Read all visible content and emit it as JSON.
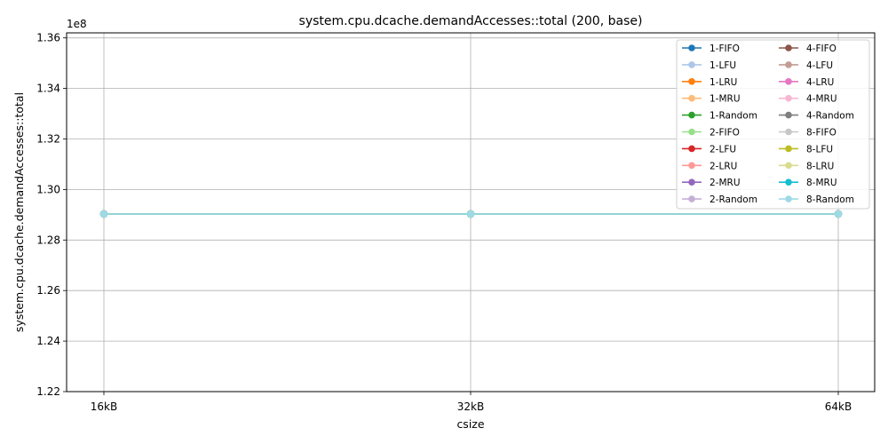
{
  "chart_data": {
    "type": "line",
    "title": "system.cpu.dcache.demandAccesses::total (200, base)",
    "xlabel": "csize",
    "ylabel": "system.cpu.dcache.demandAccesses::total",
    "categories": [
      "16kB",
      "32kB",
      "64kB"
    ],
    "ylim": [
      122000000.0,
      136200000.0
    ],
    "yticks": [
      122000000.0,
      124000000.0,
      126000000.0,
      128000000.0,
      130000000.0,
      132000000.0,
      134000000.0,
      136000000.0
    ],
    "ytick_labels": [
      "1.22",
      "1.24",
      "1.26",
      "1.28",
      "1.30",
      "1.32",
      "1.34",
      "1.36"
    ],
    "offset_label": "1e8",
    "grid": true,
    "legend_position": "top-right",
    "legend_columns": 2,
    "series": [
      {
        "name": "1-FIFO",
        "color": "#1f77b4",
        "values": [
          129030000,
          129030000,
          129030000
        ]
      },
      {
        "name": "1-LFU",
        "color": "#aec7e8",
        "values": [
          129030000,
          129030000,
          129030000
        ]
      },
      {
        "name": "1-LRU",
        "color": "#ff7f0e",
        "values": [
          129030000,
          129030000,
          129030000
        ]
      },
      {
        "name": "1-MRU",
        "color": "#ffbb78",
        "values": [
          129030000,
          129030000,
          129030000
        ]
      },
      {
        "name": "1-Random",
        "color": "#2ca02c",
        "values": [
          129030000,
          129030000,
          129030000
        ]
      },
      {
        "name": "2-FIFO",
        "color": "#98df8a",
        "values": [
          129030000,
          129030000,
          129030000
        ]
      },
      {
        "name": "2-LFU",
        "color": "#d62728",
        "values": [
          129030000,
          129030000,
          129030000
        ]
      },
      {
        "name": "2-LRU",
        "color": "#ff9896",
        "values": [
          129030000,
          129030000,
          129030000
        ]
      },
      {
        "name": "2-MRU",
        "color": "#9467bd",
        "values": [
          129030000,
          129030000,
          129030000
        ]
      },
      {
        "name": "2-Random",
        "color": "#c5b0d5",
        "values": [
          129030000,
          129030000,
          129030000
        ]
      },
      {
        "name": "4-FIFO",
        "color": "#8c564b",
        "values": [
          129030000,
          129030000,
          129030000
        ]
      },
      {
        "name": "4-LFU",
        "color": "#c49c94",
        "values": [
          129030000,
          129030000,
          129030000
        ]
      },
      {
        "name": "4-LRU",
        "color": "#e377c2",
        "values": [
          129030000,
          129030000,
          129030000
        ]
      },
      {
        "name": "4-MRU",
        "color": "#f7b6d2",
        "values": [
          129030000,
          129030000,
          129030000
        ]
      },
      {
        "name": "4-Random",
        "color": "#7f7f7f",
        "values": [
          129030000,
          129030000,
          129030000
        ]
      },
      {
        "name": "8-FIFO",
        "color": "#c7c7c7",
        "values": [
          129030000,
          129030000,
          129030000
        ]
      },
      {
        "name": "8-LFU",
        "color": "#bcbd22",
        "values": [
          129030000,
          129030000,
          129030000
        ]
      },
      {
        "name": "8-LRU",
        "color": "#dbdb8d",
        "values": [
          129030000,
          129030000,
          129030000
        ]
      },
      {
        "name": "8-MRU",
        "color": "#17becf",
        "values": [
          129030000,
          129030000,
          129030000
        ]
      },
      {
        "name": "8-Random",
        "color": "#9edae5",
        "values": [
          129030000,
          129030000,
          129030000
        ]
      }
    ]
  }
}
